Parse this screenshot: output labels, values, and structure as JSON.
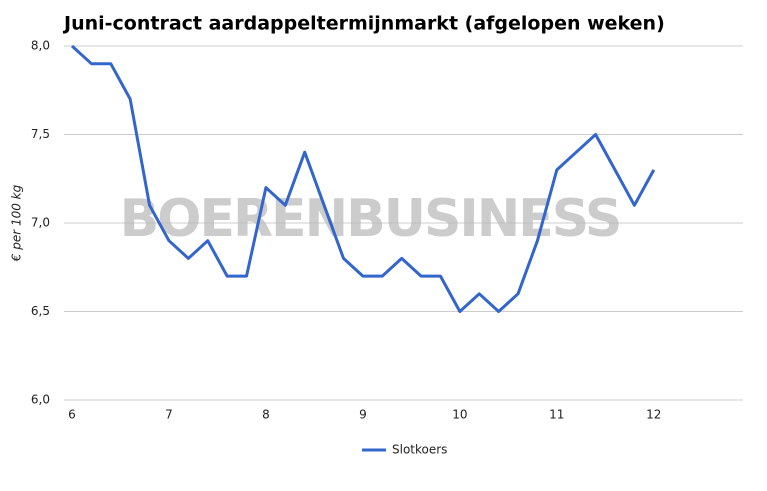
{
  "chart_data": {
    "type": "line",
    "title": "Juni-contract aardappeltermijnmarkt (afgelopen weken)",
    "y_label": "€ per 100 kg",
    "watermark": "BOERENBUSINESS",
    "x": [
      6.0,
      6.2,
      6.4,
      6.6,
      6.8,
      7.0,
      7.2,
      7.4,
      7.6,
      7.8,
      8.0,
      8.2,
      8.4,
      8.6,
      8.8,
      9.0,
      9.2,
      9.4,
      9.6,
      9.8,
      10.0,
      10.2,
      10.4,
      10.6,
      10.8,
      11.0,
      11.2,
      11.4,
      11.6,
      11.8,
      12.0
    ],
    "series": [
      {
        "name": "Slotkoers",
        "color": "#3366cc",
        "values": [
          8.0,
          7.9,
          7.9,
          7.7,
          7.1,
          6.9,
          6.8,
          6.9,
          6.7,
          6.7,
          7.2,
          7.1,
          7.4,
          7.1,
          6.8,
          6.7,
          6.7,
          6.8,
          6.7,
          6.7,
          6.5,
          6.6,
          6.5,
          6.6,
          6.9,
          7.3,
          7.4,
          7.5,
          7.3,
          7.1,
          7.3
        ]
      }
    ],
    "xlim": [
      6,
      12.92
    ],
    "xticks": [
      6,
      7,
      8,
      9,
      10,
      11,
      12
    ],
    "ylim": [
      6.0,
      8.0
    ],
    "yticks": [
      {
        "value": 6.0,
        "label": "6,0"
      },
      {
        "value": 6.5,
        "label": "6,5"
      },
      {
        "value": 7.0,
        "label": "7,0"
      },
      {
        "value": 7.5,
        "label": "7,5"
      },
      {
        "value": 8.0,
        "label": "8,0"
      }
    ],
    "grid": true,
    "legend": "bottom"
  }
}
